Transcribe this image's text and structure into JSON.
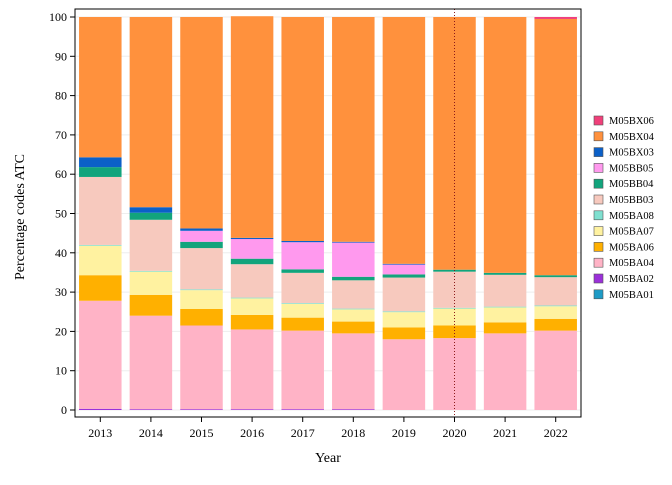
{
  "chart_data": {
    "type": "bar",
    "stacked": true,
    "percent": true,
    "xlabel": "Year",
    "ylabel": "Percentage codes ATC",
    "ylim": [
      0,
      100
    ],
    "yticks": [
      0,
      10,
      20,
      30,
      40,
      50,
      60,
      70,
      80,
      90,
      100
    ],
    "legend_position": "right",
    "reference_line": {
      "x": "2020",
      "style": "dotted",
      "color": "#8B1A1A"
    },
    "categories": [
      "2013",
      "2014",
      "2015",
      "2016",
      "2017",
      "2018",
      "2019",
      "2020",
      "2021",
      "2022"
    ],
    "series": [
      {
        "name": "M05BA01",
        "color": "#1E9BC6",
        "values": [
          0,
          0,
          0,
          0,
          0,
          0,
          0,
          0,
          0,
          0
        ]
      },
      {
        "name": "M05BA02",
        "color": "#9B30D9",
        "values": [
          0.3,
          0.2,
          0.2,
          0.2,
          0.2,
          0.2,
          0,
          0,
          0,
          0
        ]
      },
      {
        "name": "M05BA04",
        "color": "#FFB3C6",
        "values": [
          27.5,
          23.8,
          21.3,
          20.3,
          20.0,
          19.3,
          18.0,
          18.3,
          19.5,
          20.2
        ]
      },
      {
        "name": "M05BA06",
        "color": "#FFB000",
        "values": [
          6.5,
          5.3,
          4.2,
          3.7,
          3.3,
          3.0,
          3.0,
          3.2,
          2.8,
          3.0
        ]
      },
      {
        "name": "M05BA07",
        "color": "#FFF2A0",
        "values": [
          7.5,
          5.9,
          4.8,
          4.2,
          3.5,
          3.1,
          3.9,
          4.3,
          3.8,
          3.2
        ]
      },
      {
        "name": "M05BA08",
        "color": "#7FE0D0",
        "values": [
          0.2,
          0.2,
          0.2,
          0.2,
          0.2,
          0.2,
          0.2,
          0.2,
          0.2,
          0.2
        ]
      },
      {
        "name": "M05BB03",
        "color": "#F7C9BE",
        "values": [
          17.3,
          13.0,
          10.5,
          8.5,
          7.7,
          7.2,
          8.6,
          9.2,
          8.1,
          7.2
        ]
      },
      {
        "name": "M05BB04",
        "color": "#12A47C",
        "values": [
          2.5,
          1.8,
          1.6,
          1.4,
          0.9,
          0.9,
          0.8,
          0.5,
          0.5,
          0.5
        ]
      },
      {
        "name": "M05BB05",
        "color": "#FF99EE",
        "values": [
          0,
          0,
          2.8,
          5.0,
          6.9,
          8.7,
          2.5,
          0,
          0,
          0
        ]
      },
      {
        "name": "M05BX03",
        "color": "#0B60C8",
        "values": [
          2.5,
          1.4,
          0.6,
          0.3,
          0.3,
          0.2,
          0.2,
          0,
          0,
          0
        ]
      },
      {
        "name": "M05BX04",
        "color": "#FF913D",
        "values": [
          35.7,
          48.4,
          53.8,
          56.4,
          57.0,
          57.2,
          62.8,
          64.3,
          65.1,
          65.2
        ]
      },
      {
        "name": "M05BX06",
        "color": "#F0407A",
        "values": [
          0,
          0,
          0,
          0,
          0,
          0,
          0,
          0,
          0,
          0.5
        ]
      }
    ]
  }
}
